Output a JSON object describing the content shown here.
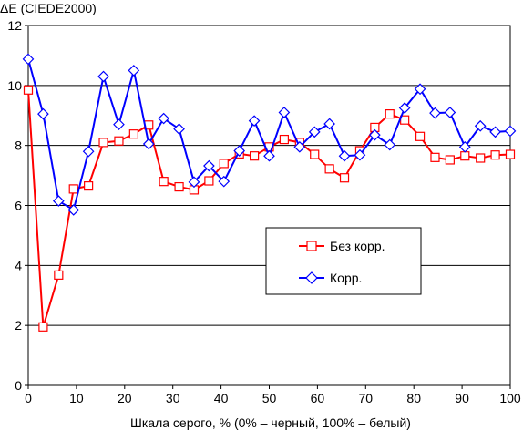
{
  "chart_data": {
    "type": "line",
    "title": "",
    "ylabel": "ΔE (CIEDE2000)",
    "xlabel": "Шкала серого, % (0% – черный, 100% – белый)",
    "xlim": [
      0,
      100
    ],
    "ylim": [
      0,
      12
    ],
    "xticks": [
      0,
      10,
      20,
      30,
      40,
      50,
      60,
      70,
      80,
      90,
      100
    ],
    "yticks": [
      0,
      2,
      4,
      6,
      8,
      10,
      12
    ],
    "grid": "horizontal",
    "legend_position": "center-right",
    "x": [
      0,
      3.1,
      6.3,
      9.4,
      12.5,
      15.6,
      18.8,
      21.9,
      25.0,
      28.1,
      31.3,
      34.4,
      37.5,
      40.6,
      43.8,
      46.9,
      50.0,
      53.1,
      56.3,
      59.4,
      62.5,
      65.6,
      68.8,
      71.9,
      75.0,
      78.1,
      81.3,
      84.4,
      87.5,
      90.6,
      93.8,
      96.9,
      100
    ],
    "series": [
      {
        "name": "Без корр.",
        "color": "#ff0000",
        "marker": "square",
        "values": [
          9.85,
          1.95,
          3.68,
          6.55,
          6.65,
          8.1,
          8.15,
          8.38,
          8.68,
          6.8,
          6.62,
          6.52,
          6.82,
          7.4,
          7.72,
          7.65,
          7.95,
          8.2,
          8.1,
          7.7,
          7.22,
          6.92,
          7.82,
          8.6,
          9.05,
          8.85,
          8.3,
          7.6,
          7.52,
          7.65,
          7.58,
          7.68,
          7.7
        ]
      },
      {
        "name": "Корр.",
        "color": "#0000ff",
        "marker": "diamond",
        "values": [
          10.88,
          9.05,
          6.15,
          5.85,
          7.8,
          10.3,
          8.7,
          10.5,
          8.05,
          8.9,
          8.55,
          6.78,
          7.32,
          6.8,
          7.82,
          8.82,
          7.65,
          9.1,
          7.95,
          8.45,
          8.72,
          7.65,
          7.68,
          8.35,
          8.02,
          9.25,
          9.88,
          9.08,
          9.1,
          7.95,
          8.65,
          8.45,
          8.48
        ]
      }
    ]
  }
}
